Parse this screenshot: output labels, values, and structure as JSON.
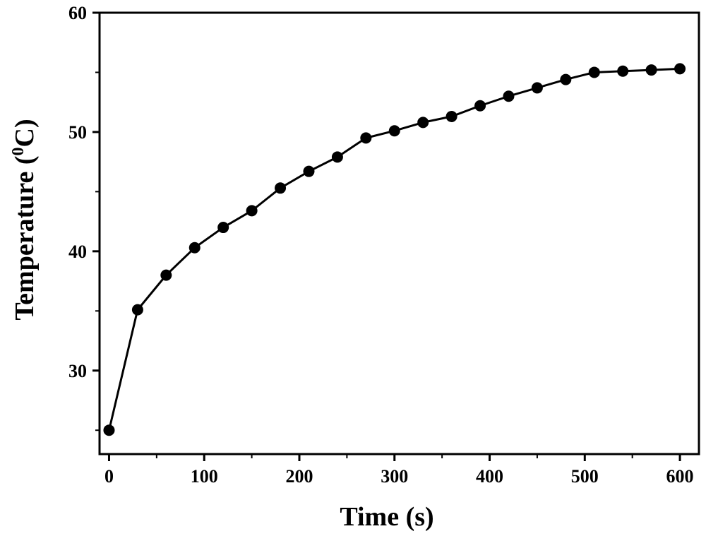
{
  "chart_data": {
    "type": "line",
    "title": "",
    "xlabel": "Time (s)",
    "ylabel_parts": {
      "before": "Temperature (",
      "superscript": "0",
      "after": "C)"
    },
    "xlim": [
      -10,
      620
    ],
    "ylim": [
      23,
      60
    ],
    "x_ticks": [
      0,
      100,
      200,
      300,
      400,
      500,
      600
    ],
    "x_tick_labels": [
      "0",
      "100",
      "200",
      "300",
      "400",
      "500",
      "600"
    ],
    "y_ticks": [
      30,
      40,
      50,
      60
    ],
    "y_tick_labels": [
      "30",
      "40",
      "50",
      "60"
    ],
    "x_minor_step": 50,
    "y_minor_step": 5,
    "grid": false,
    "legend": "none",
    "marker": "filled-circle",
    "line_color": "#000000",
    "series": [
      {
        "x": [
          0,
          30,
          60,
          90,
          120,
          150,
          180,
          210,
          240,
          270,
          300,
          330,
          360,
          390,
          420,
          450,
          480,
          510,
          540,
          570,
          600
        ],
        "y": [
          25.0,
          35.1,
          38.0,
          40.3,
          42.0,
          43.4,
          45.3,
          46.7,
          47.9,
          49.5,
          50.1,
          50.8,
          51.3,
          52.2,
          53.0,
          53.7,
          54.4,
          55.0,
          55.1,
          55.2,
          55.3
        ]
      }
    ]
  }
}
